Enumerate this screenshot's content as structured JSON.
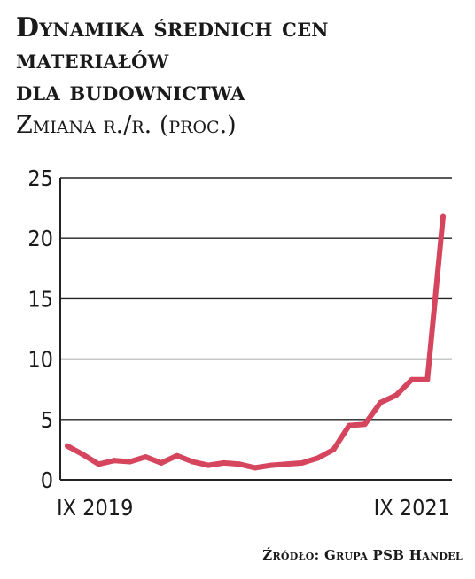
{
  "title_lines": [
    "Dynamika średnich cen",
    "materiałów",
    "dla budownictwa"
  ],
  "subtitle": "Zmiana r./r. (proc.)",
  "source": "Źródło: Grupa PSB Handel",
  "colors": {
    "line": "#d6455e",
    "grid": "#222222",
    "text": "#1a1a1a"
  },
  "chart_data": {
    "type": "line",
    "title": "Dynamika średnich cen materiałów dla budownictwa",
    "subtitle": "Zmiana r./r. (proc.)",
    "x_tick_labels": [
      "IX 2019",
      "IX 2021"
    ],
    "y_ticks": [
      0,
      5,
      10,
      15,
      20,
      25
    ],
    "ylim": [
      0,
      25
    ],
    "grid": "horizontal",
    "x": [
      "IX 2019",
      "X 2019",
      "XI 2019",
      "XII 2019",
      "I 2020",
      "II 2020",
      "III 2020",
      "IV 2020",
      "V 2020",
      "VI 2020",
      "VII 2020",
      "VIII 2020",
      "IX 2020",
      "X 2020",
      "XI 2020",
      "XII 2020",
      "I 2021",
      "II 2021",
      "III 2021",
      "IV 2021",
      "V 2021",
      "VI 2021",
      "VII 2021",
      "VIII 2021",
      "IX 2021"
    ],
    "series": [
      {
        "values": [
          2.8,
          2.1,
          1.3,
          1.6,
          1.5,
          1.9,
          1.4,
          2.0,
          1.5,
          1.2,
          1.4,
          1.3,
          1.0,
          1.2,
          1.3,
          1.4,
          1.8,
          2.5,
          4.5,
          4.6,
          6.4,
          7.0,
          8.3,
          8.3,
          21.8
        ]
      }
    ]
  }
}
